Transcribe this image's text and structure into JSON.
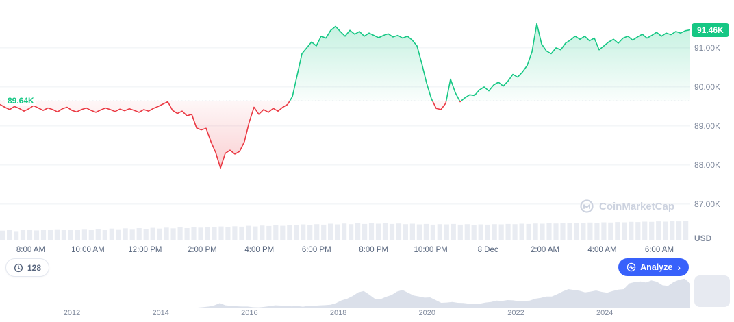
{
  "watermark": {
    "text": "CoinMarketCap"
  },
  "controls": {
    "history_count": "128",
    "analyze_label": "Analyze",
    "analyze_chevron": "›"
  },
  "chart_data": [
    {
      "type": "line",
      "name": "btc-price-24h",
      "ylabel": "USD",
      "unit": "USD thousands",
      "legend": "none",
      "grid": "horizontal",
      "x_tick_labels": [
        "8:00 AM",
        "10:00 AM",
        "12:00 PM",
        "2:00 PM",
        "4:00 PM",
        "6:00 PM",
        "8:00 PM",
        "10:00 PM",
        "8 Dec",
        "2:00 AM",
        "4:00 AM",
        "6:00 AM"
      ],
      "y_ticks": [
        {
          "value": 91.0,
          "label": "91.00K"
        },
        {
          "value": 90.0,
          "label": "90.00K"
        },
        {
          "value": 89.0,
          "label": "89.00K"
        },
        {
          "value": 88.0,
          "label": "88.00K"
        },
        {
          "value": 87.0,
          "label": "87.00K"
        }
      ],
      "ylim": [
        86.05,
        91.98
      ],
      "baseline_value": 89.64,
      "baseline_label": "89.64K",
      "last_value": 91.46,
      "last_label": "91.46K",
      "up_color": "#16c784",
      "down_color": "#ea3943",
      "values_usd_k": [
        89.55,
        89.48,
        89.42,
        89.5,
        89.45,
        89.38,
        89.44,
        89.52,
        89.46,
        89.4,
        89.46,
        89.42,
        89.36,
        89.44,
        89.48,
        89.4,
        89.36,
        89.42,
        89.46,
        89.4,
        89.35,
        89.41,
        89.46,
        89.42,
        89.37,
        89.43,
        89.39,
        89.44,
        89.4,
        89.35,
        89.42,
        89.38,
        89.45,
        89.5,
        89.56,
        89.62,
        89.4,
        89.32,
        89.38,
        89.26,
        89.3,
        88.95,
        88.9,
        88.94,
        88.6,
        88.32,
        87.92,
        88.3,
        88.38,
        88.28,
        88.35,
        88.6,
        89.1,
        89.48,
        89.3,
        89.42,
        89.35,
        89.45,
        89.38,
        89.48,
        89.55,
        89.75,
        90.3,
        90.85,
        91.0,
        91.15,
        91.05,
        91.3,
        91.25,
        91.45,
        91.55,
        91.42,
        91.3,
        91.45,
        91.35,
        91.42,
        91.3,
        91.38,
        91.32,
        91.26,
        91.32,
        91.36,
        91.28,
        91.32,
        91.25,
        91.3,
        91.2,
        91.05,
        90.6,
        90.1,
        89.7,
        89.45,
        89.42,
        89.58,
        90.2,
        89.85,
        89.62,
        89.72,
        89.8,
        89.78,
        89.92,
        90.0,
        89.9,
        90.05,
        90.12,
        90.02,
        90.15,
        90.32,
        90.25,
        90.38,
        90.55,
        90.9,
        91.62,
        91.1,
        90.92,
        90.85,
        91.0,
        90.95,
        91.12,
        91.2,
        91.3,
        91.22,
        91.3,
        91.18,
        91.25,
        90.95,
        91.05,
        91.15,
        91.22,
        91.12,
        91.25,
        91.3,
        91.2,
        91.28,
        91.35,
        91.25,
        91.32,
        91.4,
        91.3,
        91.38,
        91.34,
        91.42,
        91.38,
        91.44,
        91.46
      ]
    },
    {
      "type": "bar",
      "name": "volume-24h",
      "values_relative": [
        0.42,
        0.45,
        0.4,
        0.44,
        0.47,
        0.43,
        0.46,
        0.44,
        0.48,
        0.45,
        0.47,
        0.44,
        0.49,
        0.46,
        0.5,
        0.47,
        0.51,
        0.48,
        0.52,
        0.49,
        0.53,
        0.5,
        0.54,
        0.51,
        0.55,
        0.52,
        0.56,
        0.53,
        0.57,
        0.55,
        0.58,
        0.56,
        0.6,
        0.57,
        0.61,
        0.59,
        0.63,
        0.6,
        0.64,
        0.62,
        0.66,
        0.63,
        0.67,
        0.65,
        0.69,
        0.66,
        0.7,
        0.68,
        0.72,
        0.69,
        0.73,
        0.7,
        0.74,
        0.71,
        0.75,
        0.72,
        0.74,
        0.71,
        0.73,
        0.7,
        0.72,
        0.69,
        0.71,
        0.68,
        0.7,
        0.69,
        0.71,
        0.68,
        0.7,
        0.67,
        0.69,
        0.68,
        0.7,
        0.69,
        0.71,
        0.7,
        0.72,
        0.71,
        0.73,
        0.72,
        0.74,
        0.73,
        0.75,
        0.74,
        0.76,
        0.75,
        0.77,
        0.76,
        0.78,
        0.77,
        0.79,
        0.78,
        0.8,
        0.79,
        0.81,
        0.8,
        0.82,
        0.81,
        0.83,
        0.82,
        0.84
      ]
    },
    {
      "type": "area",
      "name": "btc-price-all-time",
      "x_tick_labels": [
        "2012",
        "2014",
        "2016",
        "2018",
        "2020",
        "2022",
        "2024"
      ],
      "values_usd_k": [
        0.01,
        0.01,
        0.01,
        0.01,
        0.01,
        0.01,
        0.01,
        0.01,
        0.01,
        0.01,
        0.01,
        0.01,
        0.01,
        0.01,
        0.01,
        0.01,
        0.05,
        0.1,
        0.24,
        0.12,
        1.1,
        0.8,
        0.6,
        0.5,
        0.4,
        0.35,
        0.25,
        0.28,
        0.3,
        0.35,
        0.43,
        0.55,
        0.65,
        0.75,
        1.0,
        2.5,
        4.5,
        6.5,
        11.0,
        19.0,
        11.0,
        9.0,
        7.5,
        6.5,
        6.4,
        4.0,
        3.6,
        5.2,
        8.0,
        11.0,
        10.0,
        8.5,
        7.2,
        8.5,
        6.0,
        9.0,
        9.2,
        10.5,
        11.5,
        13.0,
        19.0,
        29.0,
        35.0,
        45.0,
        58.0,
        63.0,
        50.0,
        35.0,
        33.0,
        42.0,
        48.0,
        61.0,
        67.0,
        57.0,
        47.0,
        43.0,
        39.0,
        40.0,
        30.0,
        20.0,
        21.0,
        23.0,
        20.0,
        19.5,
        17.0,
        16.5,
        17.0,
        21.0,
        23.0,
        28.0,
        27.0,
        30.0,
        29.0,
        26.0,
        27.0,
        28.0,
        35.0,
        38.0,
        43.0,
        43.0,
        52.0,
        62.0,
        70.0,
        67.0,
        64.0,
        58.0,
        61.0,
        65.0,
        60.0,
        57.0,
        63.0,
        68.0,
        70.0,
        91.0,
        96.0,
        98.0,
        94.0,
        102.0,
        97.0,
        84.0,
        82.0,
        96.0,
        104.0,
        108.0,
        91.0
      ]
    }
  ]
}
